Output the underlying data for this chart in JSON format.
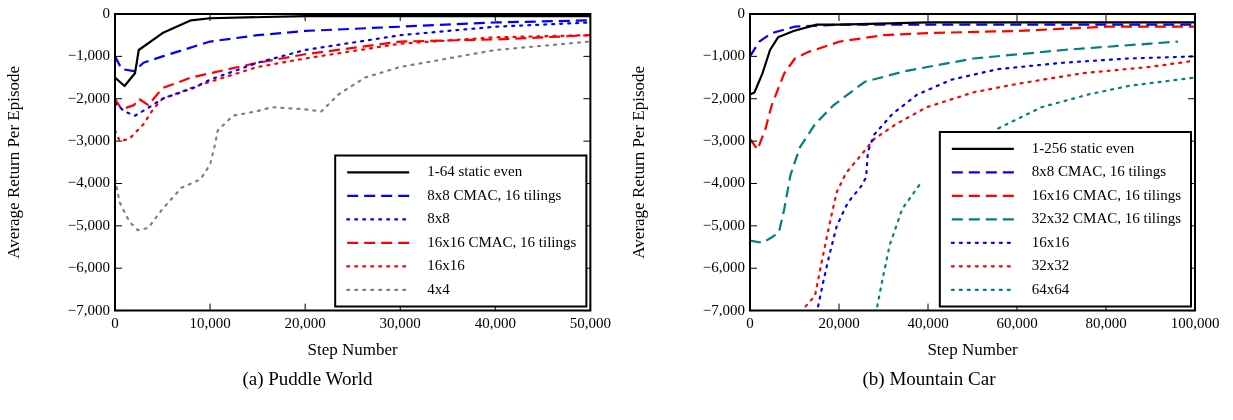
{
  "chart_data": [
    {
      "type": "line",
      "title": "(a) Puddle World",
      "xlabel": "Step Number",
      "ylabel": "Average Return Per Episode",
      "xlim": [
        0,
        50000
      ],
      "ylim": [
        -7000,
        0
      ],
      "xticks": [
        {
          "value": 0,
          "label": "0"
        },
        {
          "value": 10000,
          "label": "10,000"
        },
        {
          "value": 20000,
          "label": "20,000"
        },
        {
          "value": 30000,
          "label": "30,000"
        },
        {
          "value": 40000,
          "label": "40,000"
        },
        {
          "value": 50000,
          "label": "50,000"
        }
      ],
      "yticks": [
        {
          "value": -7000,
          "label": "−7,000"
        },
        {
          "value": -6000,
          "label": "−6,000"
        },
        {
          "value": -5000,
          "label": "−5,000"
        },
        {
          "value": -4000,
          "label": "−4,000"
        },
        {
          "value": -3000,
          "label": "−3,000"
        },
        {
          "value": -2000,
          "label": "−2,000"
        },
        {
          "value": -1000,
          "label": "−1,000"
        },
        {
          "value": 0,
          "label": "0"
        }
      ],
      "legend": "bottom right",
      "grid": false,
      "series": [
        {
          "name": "1-64 static even",
          "color": "#000000",
          "line_style": "solid",
          "x": [
            0,
            1000,
            2100,
            2500,
            5000,
            8000,
            10000,
            20000,
            30000,
            50000
          ],
          "values": [
            -1500,
            -1700,
            -1400,
            -850,
            -450,
            -150,
            -100,
            -50,
            -50,
            -50
          ]
        },
        {
          "name": "8x8 CMAC, 16 tilings",
          "color": "#0000ff",
          "line_style": "dashed",
          "x": [
            0,
            700,
            2000,
            3000,
            5000,
            10000,
            15000,
            20000,
            30000,
            40000,
            50000
          ],
          "values": [
            -1000,
            -1300,
            -1350,
            -1150,
            -1000,
            -650,
            -500,
            -400,
            -300,
            -200,
            -150
          ]
        },
        {
          "name": "8x8",
          "color": "#0000ff",
          "line_style": "dotted",
          "x": [
            0,
            1000,
            2100,
            3600,
            5000,
            8200,
            10000,
            15000,
            20000,
            30000,
            40000,
            50000
          ],
          "values": [
            -2100,
            -2300,
            -2400,
            -2200,
            -2000,
            -1750,
            -1550,
            -1150,
            -850,
            -500,
            -300,
            -200
          ]
        },
        {
          "name": "16x16 CMAC, 16 tilings",
          "color": "#ff0000",
          "line_style": "dashed",
          "x": [
            0,
            700,
            2000,
            2500,
            3500,
            5000,
            8000,
            10000,
            15000,
            20000,
            30000,
            40000,
            50000
          ],
          "values": [
            -2000,
            -2250,
            -2150,
            -2000,
            -2150,
            -1750,
            -1500,
            -1400,
            -1150,
            -950,
            -650,
            -600,
            -500
          ]
        },
        {
          "name": "16x16",
          "color": "#ff0000",
          "line_style": "dotted",
          "x": [
            0,
            500,
            1500,
            3000,
            4000,
            5000,
            8000,
            10000,
            15000,
            20000,
            30000,
            40000,
            50000
          ],
          "values": [
            -2750,
            -3000,
            -2950,
            -2600,
            -2250,
            -2000,
            -1750,
            -1600,
            -1250,
            -1050,
            -700,
            -550,
            -500
          ]
        },
        {
          "name": "4x4",
          "color": "#808080",
          "line_style": "dotted",
          "x": [
            0,
            500,
            1500,
            2400,
            3500,
            5000,
            7000,
            9000,
            10000,
            10500,
            10800,
            12400,
            14800,
            16500,
            20000,
            21700,
            23500,
            26300,
            30000,
            35000,
            40000,
            50000
          ],
          "values": [
            -3900,
            -4450,
            -4900,
            -5100,
            -5050,
            -4600,
            -4100,
            -3900,
            -3550,
            -3100,
            -2750,
            -2400,
            -2300,
            -2200,
            -2250,
            -2300,
            -1900,
            -1500,
            -1250,
            -1050,
            -850,
            -650
          ]
        }
      ]
    },
    {
      "type": "line",
      "title": "(b) Mountain Car",
      "xlabel": "Step Number",
      "ylabel": "Average Return Per Episode",
      "xlim": [
        0,
        100000
      ],
      "ylim": [
        -7000,
        0
      ],
      "xticks": [
        {
          "value": 0,
          "label": "0"
        },
        {
          "value": 20000,
          "label": "20,000"
        },
        {
          "value": 40000,
          "label": "40,000"
        },
        {
          "value": 60000,
          "label": "60,000"
        },
        {
          "value": 80000,
          "label": "80,000"
        },
        {
          "value": 100000,
          "label": "100,000"
        }
      ],
      "yticks": [
        {
          "value": -7000,
          "label": "−7,000"
        },
        {
          "value": -6000,
          "label": "−6,000"
        },
        {
          "value": -5000,
          "label": "−5,000"
        },
        {
          "value": -4000,
          "label": "−4,000"
        },
        {
          "value": -3000,
          "label": "−3,000"
        },
        {
          "value": -2000,
          "label": "−2,000"
        },
        {
          "value": -1000,
          "label": "−1,000"
        },
        {
          "value": 0,
          "label": "0"
        }
      ],
      "legend": "bottom right",
      "grid": false,
      "series": [
        {
          "name": "1-256 static even",
          "color": "#000000",
          "line_style": "solid",
          "x": [
            0,
            1000,
            2800,
            4500,
            6300,
            9800,
            15000,
            20000,
            40000,
            100000
          ],
          "values": [
            -1900,
            -1850,
            -1400,
            -850,
            -550,
            -400,
            -250,
            -250,
            -200,
            -200
          ]
        },
        {
          "name": "8x8 CMAC, 16 tilings",
          "color": "#0000ff",
          "line_style": "dashed",
          "x": [
            0,
            2100,
            4900,
            10000,
            20000,
            100000
          ],
          "values": [
            -1000,
            -650,
            -450,
            -300,
            -250,
            -250
          ]
        },
        {
          "name": "16x16 CMAC, 16 tilings",
          "color": "#ff0000",
          "line_style": "dashed",
          "x": [
            0,
            1700,
            3500,
            4900,
            7700,
            10100,
            13000,
            20200,
            30000,
            40000,
            60000,
            80000,
            100000
          ],
          "values": [
            -2950,
            -3200,
            -2700,
            -2150,
            -1400,
            -1050,
            -900,
            -650,
            -500,
            -450,
            -400,
            -300,
            -300
          ]
        },
        {
          "name": "32x32 CMAC, 16 tilings",
          "color": "#008080",
          "line_style": "dashed",
          "x": [
            0,
            2800,
            5200,
            6500,
            7700,
            9100,
            11200,
            14600,
            18800,
            25800,
            34800,
            50200,
            70400,
            89900,
            96200
          ],
          "values": [
            -5350,
            -5400,
            -5250,
            -5150,
            -4600,
            -3800,
            -3150,
            -2600,
            -2150,
            -1600,
            -1350,
            -1050,
            -850,
            -700,
            -650
          ]
        },
        {
          "name": "16x16",
          "color": "#0000ff",
          "line_style": "dotted",
          "x": [
            15300,
            16400,
            17800,
            19500,
            22000,
            25100,
            26100,
            26500,
            27900,
            32100,
            37600,
            45300,
            55800,
            70400,
            85000,
            100000
          ],
          "values": [
            -6900,
            -6350,
            -5700,
            -5000,
            -4450,
            -4050,
            -3850,
            -3250,
            -2850,
            -2350,
            -1900,
            -1550,
            -1300,
            -1150,
            -1050,
            -1000
          ]
        },
        {
          "name": "32x32",
          "color": "#ff0000",
          "line_style": "dotted",
          "x": [
            12500,
            14600,
            16400,
            18100,
            19500,
            21600,
            24400,
            27900,
            32800,
            39700,
            50200,
            60000,
            74600,
            89900,
            100000
          ],
          "values": [
            -6900,
            -6650,
            -5700,
            -4850,
            -4200,
            -3750,
            -3400,
            -2950,
            -2600,
            -2200,
            -1850,
            -1650,
            -1400,
            -1250,
            -1100
          ]
        },
        {
          "name": "64x64",
          "color": "#008080",
          "line_style": "dotted",
          "x": [
            28600,
            29600,
            31400,
            34200,
            38300,
            45000,
            55800,
            65500,
            76000,
            85000,
            100000
          ],
          "values": [
            -6900,
            -6350,
            -5450,
            -4600,
            -4000,
            null,
            -2700,
            -2200,
            -1900,
            -1700,
            -1500
          ]
        }
      ]
    }
  ]
}
